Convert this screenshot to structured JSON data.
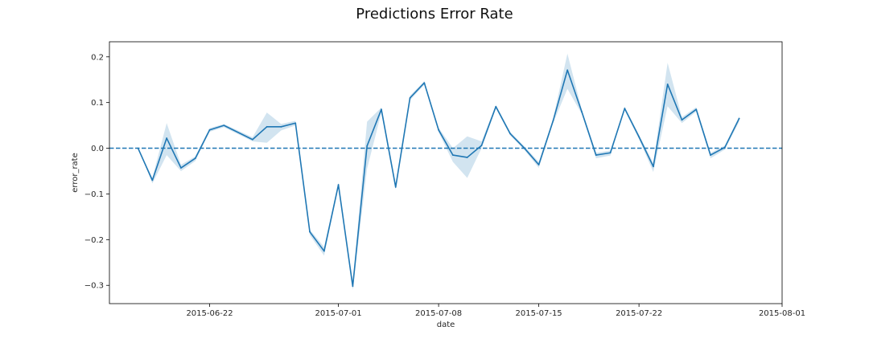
{
  "chart_data": {
    "type": "line",
    "title": "Predictions Error Rate",
    "xlabel": "date",
    "ylabel": "error_rate",
    "x_range": [
      "2015-06-15",
      "2015-08-01"
    ],
    "ylim": [
      -0.34,
      0.233
    ],
    "x_ticks": [
      "2015-06-22",
      "2015-07-01",
      "2015-07-08",
      "2015-07-15",
      "2015-07-22",
      "2015-08-01"
    ],
    "y_ticks": [
      0.2,
      0.1,
      0.0,
      -0.1,
      -0.2,
      -0.3
    ],
    "y_tick_labels": [
      "0.2",
      "0.1",
      "0.0",
      "−0.1",
      "−0.2",
      "−0.3"
    ],
    "grid": false,
    "reference_line": {
      "y": 0.0,
      "style": "dashed"
    },
    "line_color": "#1f77b4",
    "band_color": "#1f77b4",
    "series": [
      {
        "points": [
          {
            "x": "2015-06-17",
            "y": 0.0,
            "lo": 0.0,
            "hi": 0.0
          },
          {
            "x": "2015-06-18",
            "y": -0.07,
            "lo": -0.077,
            "hi": -0.065
          },
          {
            "x": "2015-06-19",
            "y": 0.022,
            "lo": -0.015,
            "hi": 0.055
          },
          {
            "x": "2015-06-20",
            "y": -0.043,
            "lo": -0.05,
            "hi": -0.036
          },
          {
            "x": "2015-06-21",
            "y": -0.022,
            "lo": -0.028,
            "hi": -0.018
          },
          {
            "x": "2015-06-22",
            "y": 0.04,
            "lo": 0.036,
            "hi": 0.044
          },
          {
            "x": "2015-06-23",
            "y": 0.05,
            "lo": 0.046,
            "hi": 0.053
          },
          {
            "x": "2015-06-25",
            "y": 0.019,
            "lo": 0.015,
            "hi": 0.024
          },
          {
            "x": "2015-06-26",
            "y": 0.047,
            "lo": 0.012,
            "hi": 0.078
          },
          {
            "x": "2015-06-27",
            "y": 0.047,
            "lo": 0.039,
            "hi": 0.053
          },
          {
            "x": "2015-06-28",
            "y": 0.055,
            "lo": 0.05,
            "hi": 0.06
          },
          {
            "x": "2015-06-29",
            "y": -0.183,
            "lo": -0.19,
            "hi": -0.178
          },
          {
            "x": "2015-06-30",
            "y": -0.225,
            "lo": -0.235,
            "hi": -0.216
          },
          {
            "x": "2015-07-01",
            "y": -0.08,
            "lo": -0.085,
            "hi": -0.075
          },
          {
            "x": "2015-07-02",
            "y": -0.302,
            "lo": -0.31,
            "hi": -0.297
          },
          {
            "x": "2015-07-03",
            "y": 0.005,
            "lo": -0.045,
            "hi": 0.058
          },
          {
            "x": "2015-07-04",
            "y": 0.085,
            "lo": 0.078,
            "hi": 0.089
          },
          {
            "x": "2015-07-05",
            "y": -0.085,
            "lo": -0.09,
            "hi": -0.08
          },
          {
            "x": "2015-07-06",
            "y": 0.11,
            "lo": 0.105,
            "hi": 0.115
          },
          {
            "x": "2015-07-07",
            "y": 0.143,
            "lo": 0.139,
            "hi": 0.147
          },
          {
            "x": "2015-07-08",
            "y": 0.04,
            "lo": 0.035,
            "hi": 0.045
          },
          {
            "x": "2015-07-09",
            "y": -0.015,
            "lo": -0.03,
            "hi": 0.0
          },
          {
            "x": "2015-07-10",
            "y": -0.02,
            "lo": -0.065,
            "hi": 0.026
          },
          {
            "x": "2015-07-11",
            "y": 0.006,
            "lo": 0.0,
            "hi": 0.015
          },
          {
            "x": "2015-07-12",
            "y": 0.091,
            "lo": 0.087,
            "hi": 0.095
          },
          {
            "x": "2015-07-13",
            "y": 0.032,
            "lo": 0.028,
            "hi": 0.036
          },
          {
            "x": "2015-07-14",
            "y": 0.0,
            "lo": -0.004,
            "hi": 0.004
          },
          {
            "x": "2015-07-15",
            "y": -0.036,
            "lo": -0.043,
            "hi": -0.03
          },
          {
            "x": "2015-07-16",
            "y": 0.06,
            "lo": 0.055,
            "hi": 0.065
          },
          {
            "x": "2015-07-17",
            "y": 0.171,
            "lo": 0.13,
            "hi": 0.207
          },
          {
            "x": "2015-07-18",
            "y": 0.08,
            "lo": 0.075,
            "hi": 0.085
          },
          {
            "x": "2015-07-19",
            "y": -0.015,
            "lo": -0.022,
            "hi": -0.01
          },
          {
            "x": "2015-07-20",
            "y": -0.01,
            "lo": -0.016,
            "hi": -0.005
          },
          {
            "x": "2015-07-21",
            "y": 0.087,
            "lo": 0.083,
            "hi": 0.091
          },
          {
            "x": "2015-07-22",
            "y": 0.025,
            "lo": 0.02,
            "hi": 0.03
          },
          {
            "x": "2015-07-23",
            "y": -0.04,
            "lo": -0.052,
            "hi": -0.032
          },
          {
            "x": "2015-07-24",
            "y": 0.14,
            "lo": 0.092,
            "hi": 0.187
          },
          {
            "x": "2015-07-25",
            "y": 0.062,
            "lo": 0.055,
            "hi": 0.068
          },
          {
            "x": "2015-07-26",
            "y": 0.085,
            "lo": 0.08,
            "hi": 0.09
          },
          {
            "x": "2015-07-27",
            "y": -0.015,
            "lo": -0.022,
            "hi": -0.01
          },
          {
            "x": "2015-07-28",
            "y": 0.002,
            "lo": -0.003,
            "hi": 0.006
          },
          {
            "x": "2015-07-29",
            "y": 0.065,
            "lo": 0.058,
            "hi": 0.07
          }
        ]
      }
    ]
  }
}
